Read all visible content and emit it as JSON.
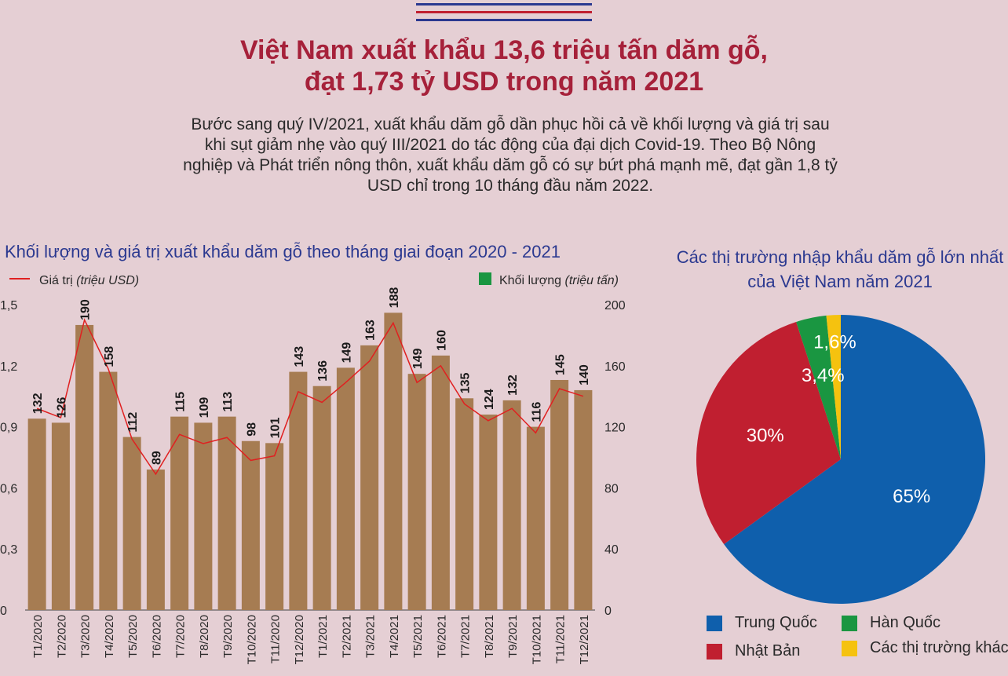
{
  "colors": {
    "background": "#e5cfd4",
    "title": "#a6213a",
    "subtitle": "#2b3990",
    "bar": "#a67c52",
    "line": "#e02020",
    "volume_legend": "#1a9641",
    "pie_blue": "#0f5fac",
    "pie_red": "#c01f30",
    "pie_green": "#1a9641",
    "pie_yellow": "#f5c20f",
    "deco": [
      "#2b3990",
      "#e5cfd4",
      "#c01f30",
      "#e5cfd4",
      "#2b3990"
    ]
  },
  "header": {
    "title_line1": "Việt Nam xuất khẩu 13,6 triệu tấn dăm gỗ,",
    "title_line2": "đạt 1,73 tỷ USD trong năm 2021",
    "intro": "Bước sang quý IV/2021, xuất khẩu dăm gỗ dần phục hồi cả về khối lượng và giá trị sau khi sụt giảm nhẹ vào quý III/2021 do tác động của đại dịch Covid-19. Theo Bộ Nông nghiệp và Phát triển nông thôn, xuất khẩu dăm gỗ có sự bứt phá mạnh mẽ, đạt gần 1,8 tỷ USD chỉ trong 10 tháng đầu năm 2022."
  },
  "chart_data": [
    {
      "type": "bar",
      "title": "Khối lượng và giá trị xuất khẩu dăm gỗ theo tháng giai đoạn 2020 - 2021",
      "categories": [
        "T1/2020",
        "T2/2020",
        "T3/2020",
        "T4/2020",
        "T5/2020",
        "T6/2020",
        "T7/2020",
        "T8/2020",
        "T9/2020",
        "T10/2020",
        "T11/2020",
        "T12/2020",
        "T1/2021",
        "T2/2021",
        "T3/2021",
        "T4/2021",
        "T5/2021",
        "T6/2021",
        "T7/2021",
        "T8/2021",
        "T9/2021",
        "T10/2021",
        "T11/2021",
        "T12/2021"
      ],
      "series": [
        {
          "name": "Khối lượng (triệu tấn)",
          "label_main": "Khối lượng",
          "label_unit": "(triệu tấn)",
          "type": "bar",
          "axis": "left",
          "values": [
            0.94,
            0.92,
            1.4,
            1.17,
            0.85,
            0.69,
            0.95,
            0.92,
            0.95,
            0.83,
            0.82,
            1.17,
            1.1,
            1.19,
            1.3,
            1.46,
            1.16,
            1.25,
            1.04,
            0.96,
            1.03,
            0.9,
            1.13,
            1.08
          ]
        },
        {
          "name": "Giá trị (triệu USD)",
          "label_main": "Giá trị",
          "label_unit": "(triệu USD)",
          "type": "line",
          "axis": "right",
          "values": [
            132,
            126,
            190,
            158,
            112,
            89,
            115,
            109,
            113,
            98,
            101,
            143,
            136,
            149,
            163,
            188,
            149,
            160,
            135,
            124,
            132,
            116,
            145,
            140
          ]
        }
      ],
      "data_labels": [
        "132",
        "126",
        "190",
        "158",
        "112",
        "89",
        "115",
        "109",
        "113",
        "98",
        "101",
        "143",
        "136",
        "149",
        "163",
        "188",
        "149",
        "160",
        "135",
        "124",
        "132",
        "116",
        "145",
        "140"
      ],
      "y_left": {
        "ticks": [
          "0",
          "0,3",
          "0,6",
          "0,9",
          "1,2",
          "1,5"
        ],
        "values": [
          0,
          0.3,
          0.6,
          0.9,
          1.2,
          1.5
        ],
        "range": [
          0,
          1.5
        ]
      },
      "y_right": {
        "ticks": [
          "0",
          "40",
          "80",
          "120",
          "160",
          "200"
        ],
        "values": [
          0,
          40,
          80,
          120,
          160,
          200
        ],
        "range": [
          0,
          200
        ]
      }
    },
    {
      "type": "pie",
      "title": "Các thị trường nhập khẩu dăm gỗ lớn nhất của Việt Nam năm 2021",
      "slices": [
        {
          "label": "Trung Quốc",
          "value": 65,
          "display": "65%",
          "color": "#0f5fac"
        },
        {
          "label": "Nhật Bản",
          "value": 30,
          "display": "30%",
          "color": "#c01f30"
        },
        {
          "label": "Hàn Quốc",
          "value": 3.4,
          "display": "3,4%",
          "color": "#1a9641"
        },
        {
          "label": "Các thị trường khác",
          "value": 1.6,
          "display": "1,6%",
          "color": "#f5c20f"
        }
      ]
    }
  ]
}
